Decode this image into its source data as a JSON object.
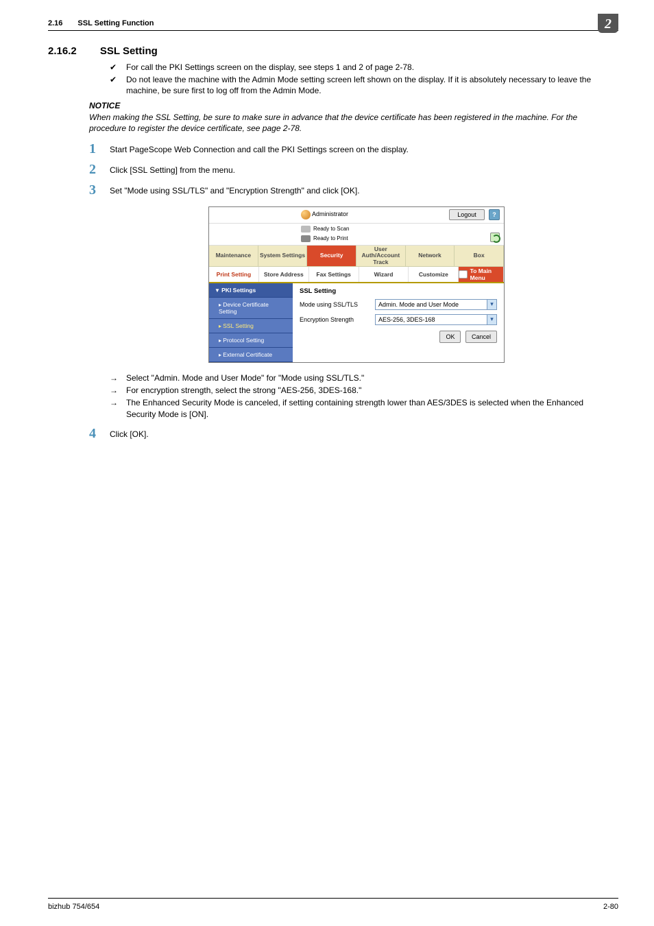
{
  "header": {
    "section_num": "2.16",
    "section_title": "SSL Setting Function",
    "chapter_tab": "2"
  },
  "heading": {
    "num": "2.16.2",
    "title": "SSL Setting"
  },
  "checks": [
    "For call the PKI Settings screen on the display, see steps 1 and 2 of page 2-78.",
    "Do not leave the machine with the Admin Mode setting screen left shown on the display. If it is absolutely necessary to leave the machine, be sure first to log off from the Admin Mode."
  ],
  "notice": {
    "title": "NOTICE",
    "body": "When making the SSL Setting, be sure to make sure in advance that the device certificate has been registered in the machine. For the procedure to register the device certificate, see page 2-78."
  },
  "steps": [
    {
      "n": "1",
      "t": "Start PageScope Web Connection and call the PKI Settings screen on the display."
    },
    {
      "n": "2",
      "t": "Click [SSL Setting] from the menu."
    },
    {
      "n": "3",
      "t": "Set \"Mode using SSL/TLS\" and \"Encryption Strength\" and click [OK]."
    }
  ],
  "arrows": [
    "Select \"Admin. Mode and User Mode\" for \"Mode using SSL/TLS.\"",
    "For encryption strength, select the strong \"AES-256, 3DES-168.\"",
    "The Enhanced Security Mode is canceled, if setting containing strength lower than AES/3DES is selected when the Enhanced Security Mode is [ON]."
  ],
  "step4": {
    "n": "4",
    "t": "Click [OK]."
  },
  "shot": {
    "topbar": {
      "admin": "Administrator",
      "logout": "Logout",
      "help": "?"
    },
    "status": {
      "scan": "Ready to Scan",
      "print": "Ready to Print"
    },
    "tabs1": [
      "Maintenance",
      "System Settings",
      "Security",
      "User Auth/Account Track",
      "Network",
      "Box"
    ],
    "tabs1_active_index": 2,
    "tabs2": [
      "Print Setting",
      "Store Address",
      "Fax Settings",
      "Wizard",
      "Customize",
      "To Main Menu"
    ],
    "side": {
      "head": "PKI Settings",
      "items": [
        "Device Certificate Setting",
        "SSL Setting",
        "Protocol Setting",
        "External Certificate"
      ]
    },
    "main": {
      "panel_title": "SSL Setting",
      "row1_label": "Mode using SSL/TLS",
      "row1_value": "Admin. Mode and User Mode",
      "row2_label": "Encryption Strength",
      "row2_value": "AES-256, 3DES-168",
      "ok": "OK",
      "cancel": "Cancel"
    }
  },
  "footer": {
    "left": "bizhub 754/654",
    "right": "2-80"
  },
  "colors": {
    "chapter_tab_bg": "#555555",
    "step_num": "#4a90b8",
    "tab_active_bg": "#d94a2a",
    "side_bg": "#3a5aa0",
    "side_child_bg": "#5a7ac0",
    "side_ssl_text": "#ffea7a",
    "cream_tab_bg": "#f0eac4"
  }
}
